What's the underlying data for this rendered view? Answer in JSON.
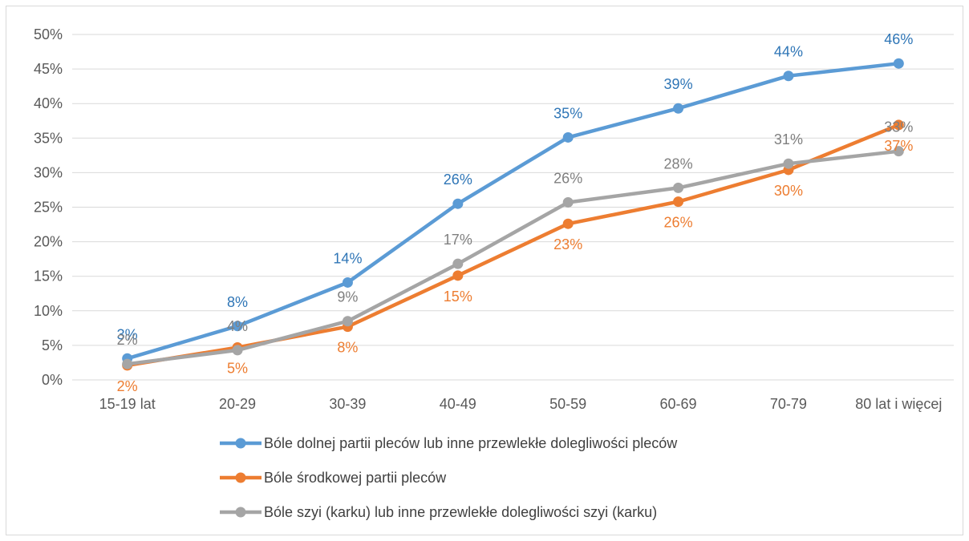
{
  "chart_data": {
    "type": "line",
    "categories": [
      "15-19 lat",
      "20-29",
      "30-39",
      "40-49",
      "50-59",
      "60-69",
      "70-79",
      "80 lat i więcej"
    ],
    "series": [
      {
        "name": "Bóle dolnej partii pleców lub inne przewlekłe dolegliwości pleców",
        "color": "#5b9bd5",
        "label_color": "#2e75b6",
        "values": [
          3.1,
          7.8,
          14.1,
          25.5,
          35.1,
          39.3,
          44.0,
          45.8
        ],
        "labels": [
          "3%",
          "8%",
          "14%",
          "26%",
          "35%",
          "39%",
          "44%",
          "46%"
        ]
      },
      {
        "name": "Bóle środkowej partii pleców",
        "color": "#ed7d31",
        "label_color": "#ed7d31",
        "values": [
          2.1,
          4.7,
          7.7,
          15.1,
          22.6,
          25.8,
          30.4,
          36.9
        ],
        "labels": [
          "2%",
          "5%",
          "8%",
          "15%",
          "23%",
          "26%",
          "30%",
          "37%"
        ]
      },
      {
        "name": "Bóle szyi (karku) lub inne przewlekłe dolegliwości szyi (karku)",
        "color": "#a5a5a5",
        "label_color": "#7f7f7f",
        "values": [
          2.3,
          4.3,
          8.5,
          16.8,
          25.7,
          27.8,
          31.3,
          33.1
        ],
        "labels": [
          "2%",
          "4%",
          "9%",
          "17%",
          "26%",
          "28%",
          "31%",
          "33%"
        ]
      }
    ],
    "ylim": [
      0,
      50
    ],
    "y_ticks": [
      "0%",
      "5%",
      "10%",
      "15%",
      "20%",
      "25%",
      "30%",
      "35%",
      "40%",
      "45%",
      "50%"
    ],
    "y_tick_values": [
      0,
      5,
      10,
      15,
      20,
      25,
      30,
      35,
      40,
      45,
      50
    ],
    "grid": true,
    "legend_position": "bottom"
  }
}
